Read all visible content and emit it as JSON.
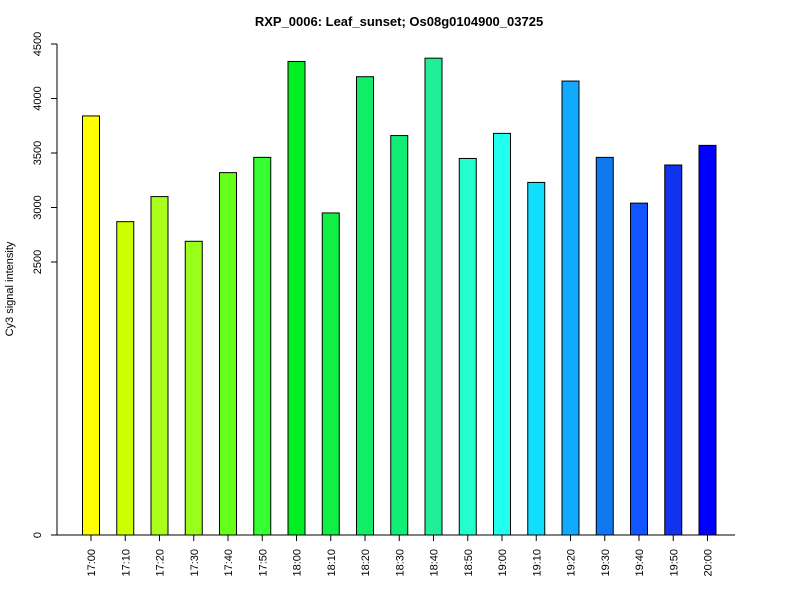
{
  "chart_data": {
    "type": "bar",
    "title": "RXP_0006: Leaf_sunset; Os08g0104900_03725",
    "xlabel": "",
    "ylabel": "Cy3 signal intensity",
    "categories": [
      "17:00",
      "17:10",
      "17:20",
      "17:30",
      "17:40",
      "17:50",
      "18:00",
      "18:10",
      "18:20",
      "18:30",
      "18:40",
      "18:50",
      "19:00",
      "19:10",
      "19:20",
      "19:30",
      "19:40",
      "19:50",
      "20:00"
    ],
    "values": [
      3840,
      2870,
      3100,
      2690,
      3320,
      3460,
      4340,
      2950,
      4200,
      3660,
      4370,
      3450,
      3680,
      3230,
      4160,
      3460,
      3040,
      3390,
      3570
    ],
    "colors": [
      "#FFFF00",
      "#CCFF00",
      "#AAFF1A",
      "#99FF1A",
      "#66FF1A",
      "#33FF33",
      "#00EE22",
      "#11EE44",
      "#11EE66",
      "#11EE77",
      "#22EE99",
      "#22FFCC",
      "#22FFEE",
      "#11DDFF",
      "#11AAFF",
      "#1177EE",
      "#1155FF",
      "#1133EE",
      "#0000FF"
    ],
    "yticks": [
      0,
      2500,
      3000,
      3500,
      4000,
      4500
    ],
    "ytick_labels": [
      "0",
      "2500",
      "3000",
      "3500",
      "4000",
      "4500"
    ],
    "ylim": [
      0,
      4500
    ],
    "ybreak_note": "axis is non-linear: 0 to 2500 is compressed",
    "grid": false,
    "legend": "none"
  }
}
